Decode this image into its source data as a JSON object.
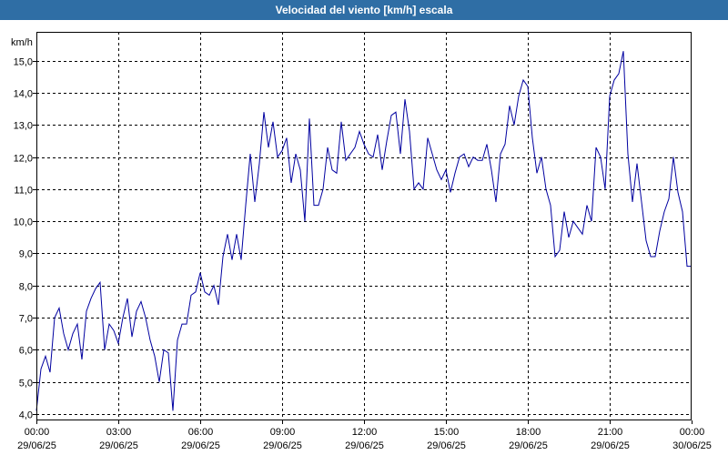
{
  "chart_data": {
    "type": "line",
    "title": "Velocidad del viento [km/h] escala",
    "ylabel": "km/h",
    "xlabel": "",
    "ylim": [
      3.8,
      15.9
    ],
    "yticks": [
      4.0,
      5.0,
      6.0,
      7.0,
      8.0,
      9.0,
      10.0,
      11.0,
      12.0,
      13.0,
      14.0,
      15.0
    ],
    "ytick_labels": [
      "4,0",
      "5,0",
      "6,0",
      "7,0",
      "8,0",
      "9,0",
      "10,0",
      "11,0",
      "12,0",
      "13,0",
      "14,0",
      "15,0"
    ],
    "xlim": [
      "29/06/25 00:00",
      "30/06/25 00:00"
    ],
    "xticks": [
      {
        "time": "00:00",
        "date": "29/06/25"
      },
      {
        "time": "03:00",
        "date": "29/06/25"
      },
      {
        "time": "06:00",
        "date": "29/06/25"
      },
      {
        "time": "09:00",
        "date": "29/06/25"
      },
      {
        "time": "12:00",
        "date": "29/06/25"
      },
      {
        "time": "15:00",
        "date": "29/06/25"
      },
      {
        "time": "18:00",
        "date": "29/06/25"
      },
      {
        "time": "21:00",
        "date": "29/06/25"
      },
      {
        "time": "00:00",
        "date": "30/06/25"
      }
    ],
    "grid": true,
    "colors": {
      "line": "#0000a0",
      "grid": "#000000",
      "title_bar": "#2f6ea5"
    },
    "series": [
      {
        "x": [
          "29/06/25 00:00",
          "29/06/25 00:10",
          "29/06/25 00:20",
          "29/06/25 00:30",
          "29/06/25 00:40",
          "29/06/25 00:50",
          "29/06/25 01:00",
          "29/06/25 01:10",
          "29/06/25 01:20",
          "29/06/25 01:30",
          "29/06/25 01:40",
          "29/06/25 01:50",
          "29/06/25 02:00",
          "29/06/25 02:10",
          "29/06/25 02:20",
          "29/06/25 02:30",
          "29/06/25 02:40",
          "29/06/25 02:50",
          "29/06/25 03:00",
          "29/06/25 03:10",
          "29/06/25 03:20",
          "29/06/25 03:30",
          "29/06/25 03:40",
          "29/06/25 03:50",
          "29/06/25 04:00",
          "29/06/25 04:10",
          "29/06/25 04:20",
          "29/06/25 04:30",
          "29/06/25 04:40",
          "29/06/25 04:50",
          "29/06/25 05:00",
          "29/06/25 05:10",
          "29/06/25 05:20",
          "29/06/25 05:30",
          "29/06/25 05:40",
          "29/06/25 05:50",
          "29/06/25 06:00",
          "29/06/25 06:10",
          "29/06/25 06:20",
          "29/06/25 06:30",
          "29/06/25 06:40",
          "29/06/25 06:50",
          "29/06/25 07:00",
          "29/06/25 07:10",
          "29/06/25 07:20",
          "29/06/25 07:30",
          "29/06/25 07:40",
          "29/06/25 07:50",
          "29/06/25 08:00",
          "29/06/25 08:10",
          "29/06/25 08:20",
          "29/06/25 08:30",
          "29/06/25 08:40",
          "29/06/25 08:50",
          "29/06/25 09:00",
          "29/06/25 09:10",
          "29/06/25 09:20",
          "29/06/25 09:30",
          "29/06/25 09:40",
          "29/06/25 09:50",
          "29/06/25 10:00",
          "29/06/25 10:10",
          "29/06/25 10:20",
          "29/06/25 10:30",
          "29/06/25 10:40",
          "29/06/25 10:50",
          "29/06/25 11:00",
          "29/06/25 11:10",
          "29/06/25 11:20",
          "29/06/25 11:30",
          "29/06/25 11:40",
          "29/06/25 11:50",
          "29/06/25 12:00",
          "29/06/25 12:10",
          "29/06/25 12:20",
          "29/06/25 12:30",
          "29/06/25 12:40",
          "29/06/25 12:50",
          "29/06/25 13:00",
          "29/06/25 13:10",
          "29/06/25 13:20",
          "29/06/25 13:30",
          "29/06/25 13:40",
          "29/06/25 13:50",
          "29/06/25 14:00",
          "29/06/25 14:10",
          "29/06/25 14:20",
          "29/06/25 14:30",
          "29/06/25 14:40",
          "29/06/25 14:50",
          "29/06/25 15:00",
          "29/06/25 15:10",
          "29/06/25 15:20",
          "29/06/25 15:30",
          "29/06/25 15:40",
          "29/06/25 15:50",
          "29/06/25 16:00",
          "29/06/25 16:10",
          "29/06/25 16:20",
          "29/06/25 16:30",
          "29/06/25 16:40",
          "29/06/25 16:50",
          "29/06/25 17:00",
          "29/06/25 17:10",
          "29/06/25 17:20",
          "29/06/25 17:30",
          "29/06/25 17:40",
          "29/06/25 17:50",
          "29/06/25 18:00",
          "29/06/25 18:10",
          "29/06/25 18:20",
          "29/06/25 18:30",
          "29/06/25 18:40",
          "29/06/25 18:50",
          "29/06/25 19:00",
          "29/06/25 19:10",
          "29/06/25 19:20",
          "29/06/25 19:30",
          "29/06/25 19:40",
          "29/06/25 19:50",
          "29/06/25 20:00",
          "29/06/25 20:10",
          "29/06/25 20:20",
          "29/06/25 20:30",
          "29/06/25 20:40",
          "29/06/25 20:50",
          "29/06/25 21:00",
          "29/06/25 21:10",
          "29/06/25 21:20",
          "29/06/25 21:30",
          "29/06/25 21:40",
          "29/06/25 21:50",
          "29/06/25 22:00",
          "29/06/25 22:10",
          "29/06/25 22:20",
          "29/06/25 22:30",
          "29/06/25 22:40",
          "29/06/25 22:50",
          "29/06/25 23:00",
          "29/06/25 23:10",
          "29/06/25 23:20",
          "29/06/25 23:30",
          "29/06/25 23:40",
          "29/06/25 23:50",
          "30/06/25 00:00"
        ],
        "y": [
          4.1,
          5.4,
          5.8,
          5.3,
          7.0,
          7.3,
          6.5,
          6.0,
          6.5,
          6.8,
          5.7,
          7.2,
          7.6,
          7.9,
          8.1,
          6.0,
          6.8,
          6.6,
          6.2,
          7.0,
          7.6,
          6.4,
          7.2,
          7.5,
          7.0,
          6.3,
          5.8,
          5.0,
          6.0,
          5.9,
          4.1,
          6.3,
          6.8,
          6.8,
          7.7,
          7.8,
          8.4,
          7.8,
          7.7,
          8.0,
          7.4,
          8.9,
          9.6,
          8.8,
          9.6,
          8.8,
          10.5,
          12.1,
          10.6,
          11.8,
          13.4,
          12.3,
          13.1,
          12.0,
          12.2,
          12.6,
          11.2,
          12.1,
          11.6,
          10.0,
          13.2,
          10.5,
          10.5,
          11.0,
          12.3,
          11.6,
          11.5,
          13.1,
          11.9,
          12.1,
          12.3,
          12.8,
          12.4,
          12.1,
          12.0,
          12.7,
          11.6,
          12.5,
          13.3,
          13.4,
          12.1,
          13.8,
          12.8,
          11.0,
          11.2,
          11.0,
          12.6,
          12.1,
          11.6,
          11.3,
          11.6,
          10.9,
          11.5,
          12.0,
          12.1,
          11.7,
          12.0,
          11.9,
          11.9,
          12.4,
          11.6,
          10.6,
          12.1,
          12.4,
          13.6,
          13.0,
          13.9,
          14.4,
          14.2,
          12.6,
          11.5,
          12.0,
          11.0,
          10.5,
          8.9,
          9.1,
          10.3,
          9.5,
          10.0,
          9.8,
          9.6,
          10.5,
          10.0,
          12.3,
          12.0,
          11.0,
          13.9,
          14.4,
          14.6,
          15.3,
          12.1,
          10.6,
          11.8,
          10.6,
          9.4,
          8.9,
          8.9,
          9.7,
          10.3,
          10.7,
          12.0,
          10.9,
          10.3,
          8.6,
          8.6
        ]
      }
    ]
  }
}
